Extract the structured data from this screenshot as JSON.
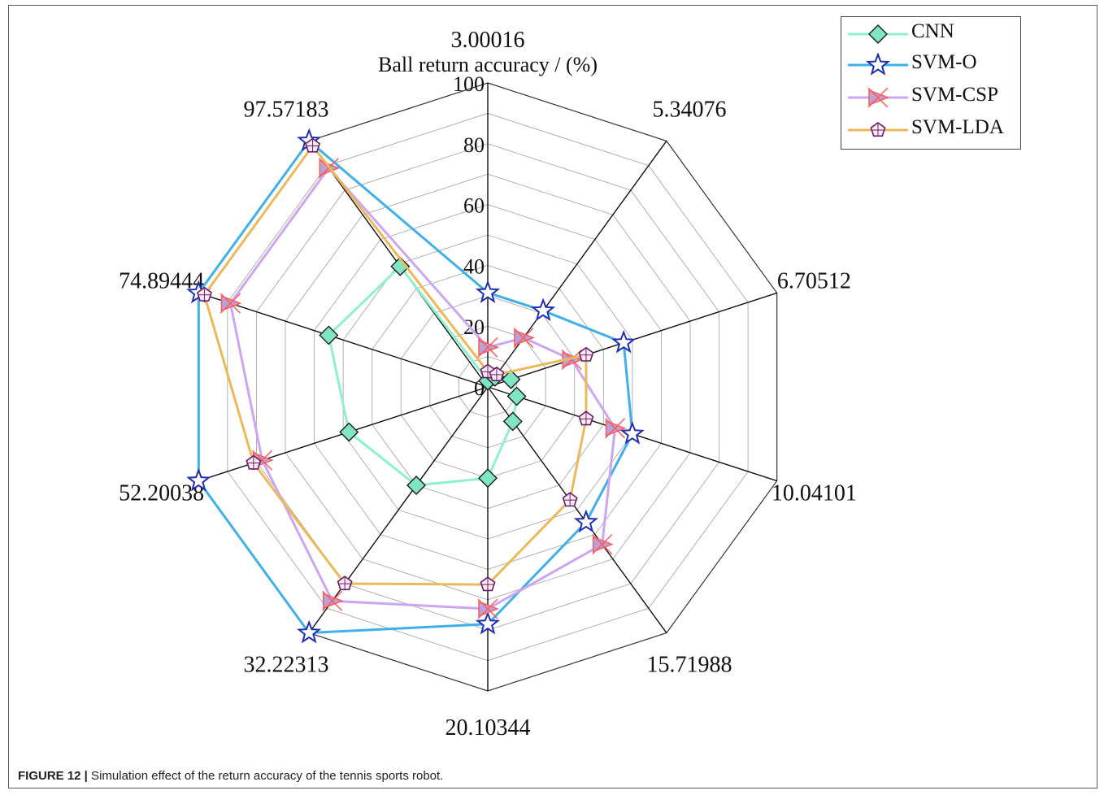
{
  "chart_data": {
    "type": "radar",
    "title": "Ball return accuracy / (%)",
    "rlim": [
      0,
      100
    ],
    "radial_ticks": [
      "0",
      "20",
      "40",
      "60",
      "80",
      "100"
    ],
    "categories": [
      "3.00016",
      "5.34076",
      "6.70512",
      "10.04101",
      "15.71988",
      "20.10344",
      "32.22313",
      "52.20038",
      "74.89444",
      "97.57183"
    ],
    "series": [
      {
        "name": "CNN",
        "color": "#8ef0d2",
        "marker": "diamond",
        "values": [
          2,
          4,
          8,
          10,
          14,
          30,
          40,
          48,
          55,
          49
        ]
      },
      {
        "name": "SVM-O",
        "color": "#3fb0ea",
        "marker": "star",
        "values": [
          31,
          31,
          47,
          50,
          55,
          78,
          100,
          100,
          100,
          100
        ]
      },
      {
        "name": "SVM-CSP",
        "color": "#cda6f3",
        "marker": "triangle-x",
        "values": [
          13,
          20,
          29,
          44,
          64,
          73,
          87,
          78,
          89,
          89
        ]
      },
      {
        "name": "SVM-LDA",
        "color": "#ecb95a",
        "marker": "pentagon",
        "values": [
          5,
          5,
          34,
          34,
          46,
          65,
          80,
          81,
          98,
          98
        ]
      }
    ],
    "grid": true,
    "legend": "top-right"
  },
  "caption": {
    "label": "FIGURE 12 |",
    "text": " Simulation effect of the return accuracy of the tennis sports robot."
  }
}
